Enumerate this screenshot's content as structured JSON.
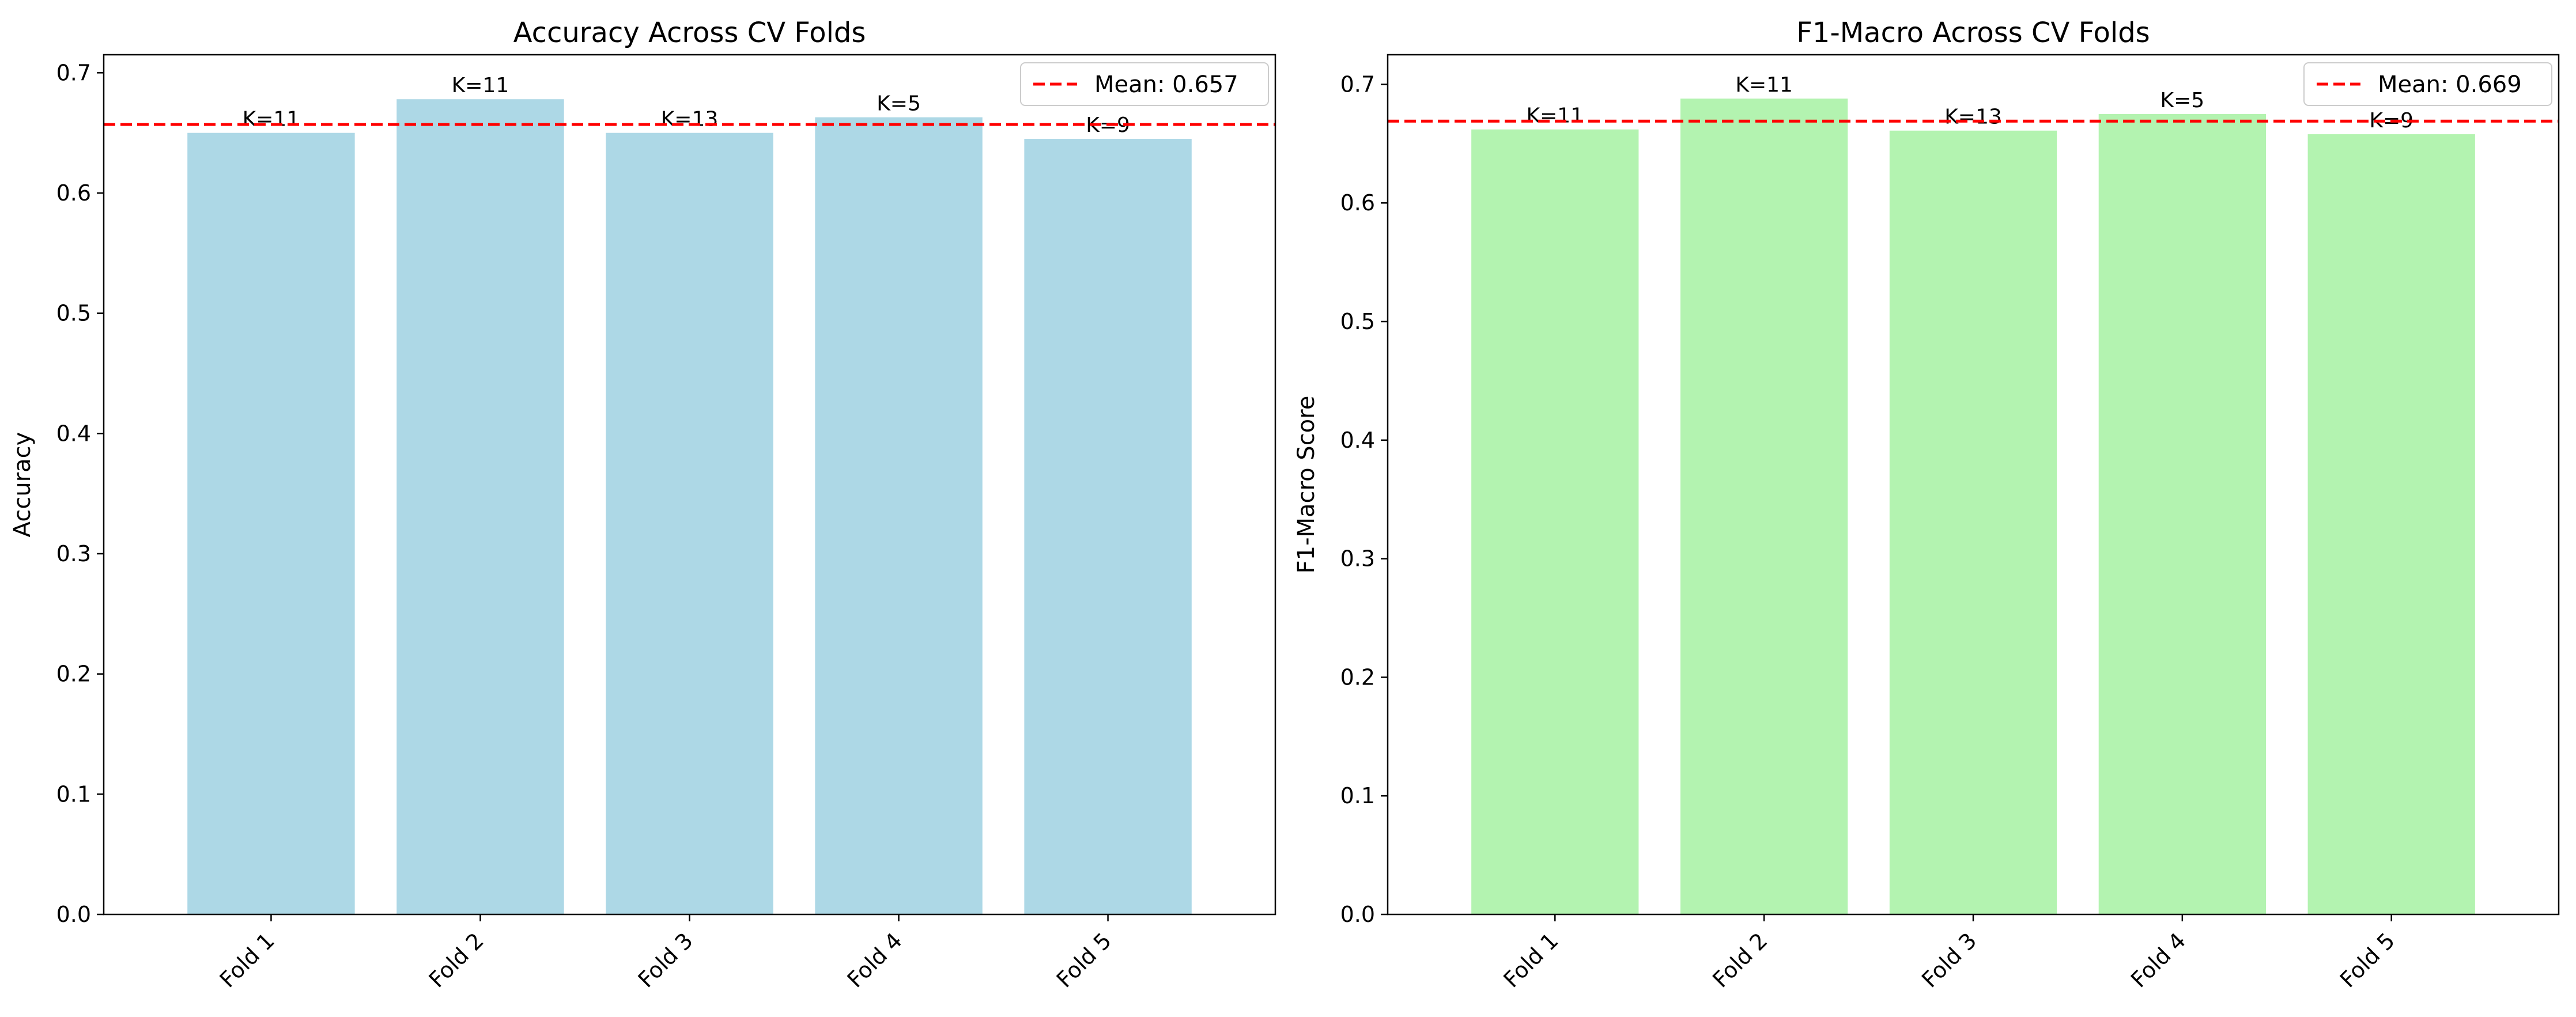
{
  "chart_data": [
    {
      "type": "bar",
      "title": "Accuracy Across CV Folds",
      "xlabel": "",
      "ylabel": "Accuracy",
      "categories": [
        "Fold 1",
        "Fold 2",
        "Fold 3",
        "Fold 4",
        "Fold 5"
      ],
      "values": [
        0.65,
        0.678,
        0.65,
        0.663,
        0.645
      ],
      "bar_labels": [
        "K=11",
        "K=11",
        "K=13",
        "K=5",
        "K=9"
      ],
      "bar_color": "#add8e6",
      "mean_line": {
        "value": 0.657,
        "color": "#ff0000",
        "label": "Mean: 0.657"
      },
      "ylim": [
        0,
        0.715
      ],
      "yticks": [
        0.0,
        0.1,
        0.2,
        0.3,
        0.4,
        0.5,
        0.6,
        0.7
      ],
      "ytick_labels": [
        "0.0",
        "0.1",
        "0.2",
        "0.3",
        "0.4",
        "0.5",
        "0.6",
        "0.7"
      ],
      "legend_placement": "top-right",
      "grid": false
    },
    {
      "type": "bar",
      "title": "F1-Macro Across CV Folds",
      "xlabel": "",
      "ylabel": "F1-Macro Score",
      "categories": [
        "Fold 1",
        "Fold 2",
        "Fold 3",
        "Fold 4",
        "Fold 5"
      ],
      "values": [
        0.662,
        0.688,
        0.661,
        0.675,
        0.658
      ],
      "bar_labels": [
        "K=11",
        "K=11",
        "K=13",
        "K=5",
        "K=9"
      ],
      "bar_color": "#b3f3b0",
      "mean_line": {
        "value": 0.669,
        "color": "#ff0000",
        "label": "Mean: 0.669"
      },
      "ylim": [
        0,
        0.725
      ],
      "yticks": [
        0.0,
        0.1,
        0.2,
        0.3,
        0.4,
        0.5,
        0.6,
        0.7
      ],
      "ytick_labels": [
        "0.0",
        "0.1",
        "0.2",
        "0.3",
        "0.4",
        "0.5",
        "0.6",
        "0.7"
      ],
      "legend_placement": "top-right",
      "grid": false
    }
  ]
}
